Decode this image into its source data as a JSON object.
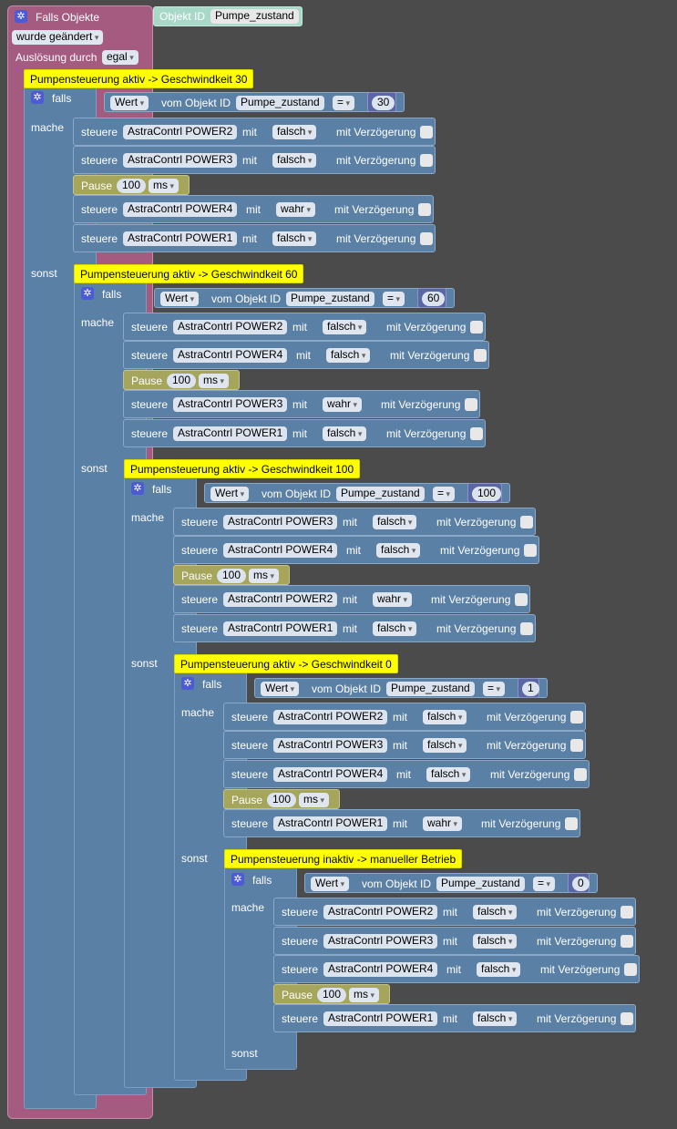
{
  "event": {
    "title": "Falls Objekte",
    "change": "wurde geändert",
    "trigger_label": "Auslösung durch",
    "trigger_value": "egal",
    "object_label": "Objekt ID",
    "object_value": "Pumpe_zustand"
  },
  "common": {
    "falls": "falls",
    "mache": "mache",
    "sonst": "sonst",
    "wert": "Wert",
    "vom_objekt": "vom Objekt ID",
    "objekt": "Pumpe_zustand",
    "op": "=",
    "steuere": "steuere",
    "mit": "mit",
    "delay": "mit Verzögerung",
    "pause": "Pause",
    "pause_value": "100",
    "pause_unit": "ms",
    "falsch": "falsch",
    "wahr": "wahr",
    "p1": "AstraContrl POWER1",
    "p2": "AstraContrl POWER2",
    "p3": "AstraContrl POWER3",
    "p4": "AstraContrl  POWER4"
  },
  "levels": [
    {
      "comment": "Pumpensteuerung aktiv -> Geschwindkeit 30",
      "value": "30"
    },
    {
      "comment": "Pumpensteuerung aktiv -> Geschwindkeit 60",
      "value": "60"
    },
    {
      "comment": "Pumpensteuerung aktiv -> Geschwindkeit 100",
      "value": "100"
    },
    {
      "comment": "Pumpensteuerung aktiv -> Geschwindkeit 0",
      "value": "1"
    },
    {
      "comment": "Pumpensteuerung inaktiv -> manueller Betrieb",
      "value": "0"
    }
  ]
}
